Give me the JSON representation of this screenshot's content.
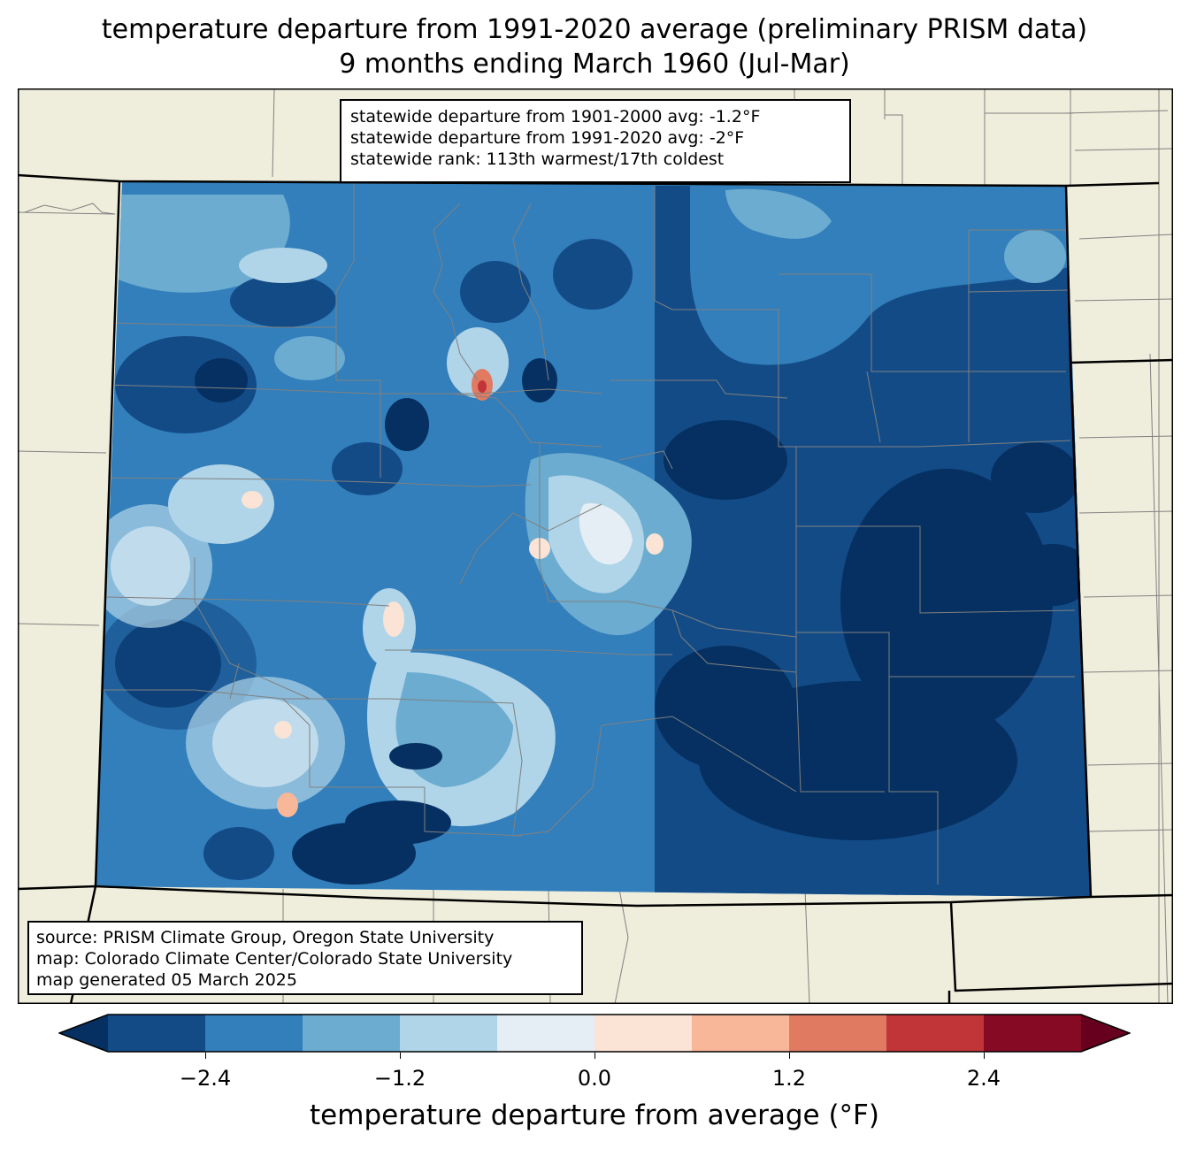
{
  "title": {
    "line1": "temperature departure from 1991-2020 average (preliminary PRISM data)",
    "line2": "9 months ending March 1960 (Jul-Mar)"
  },
  "stats": {
    "line1": "statewide departure from 1901-2000 avg: -1.2°F",
    "line2": "statewide departure from 1991-2020 avg: -2°F",
    "line3": "statewide rank: 113th warmest/17th coldest"
  },
  "source": {
    "line1": "source: PRISM Climate Group, Oregon State University",
    "line2": "map: Colorado Climate Center/Colorado State University",
    "line3": "map generated 05 March 2025"
  },
  "colorbar": {
    "label": "temperature departure from average (°F)",
    "ticks": [
      "−2.4",
      "−1.2",
      "0.0",
      "1.2",
      "2.4"
    ],
    "tick_values": [
      -2.4,
      -1.2,
      0.0,
      1.2,
      2.4
    ],
    "range": [
      -3.0,
      3.0
    ],
    "step": 0.6,
    "colors": [
      "#053061",
      "#134b87",
      "#327fbb",
      "#6bacd0",
      "#b0d4e8",
      "#e4eef4",
      "#fbe3d6",
      "#f8b799",
      "#e07b62",
      "#c13539",
      "#870a24",
      "#67001f"
    ]
  },
  "map_colors": {
    "land": "#efeedc",
    "border": "#000000",
    "county": "#808080"
  }
}
